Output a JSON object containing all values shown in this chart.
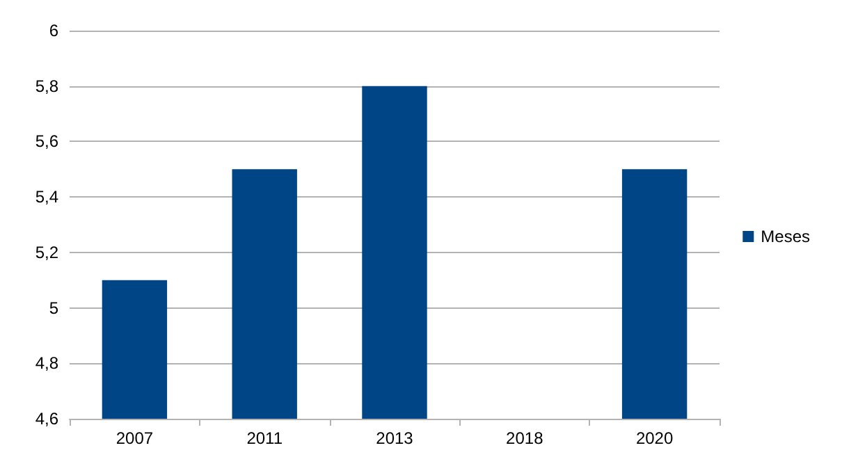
{
  "chart_data": {
    "type": "bar",
    "categories": [
      "2007",
      "2011",
      "2013",
      "2018",
      "2020"
    ],
    "series": [
      {
        "name": "Meses",
        "color": "#004586",
        "values": [
          5.1,
          5.5,
          5.8,
          null,
          5.5
        ]
      }
    ],
    "ylim": [
      4.6,
      6
    ],
    "yticks": [
      {
        "value": 4.6,
        "label": "4,6"
      },
      {
        "value": 4.8,
        "label": "4,8"
      },
      {
        "value": 5,
        "label": "5"
      },
      {
        "value": 5.2,
        "label": "5,2"
      },
      {
        "value": 5.4,
        "label": "5,4"
      },
      {
        "value": 5.6,
        "label": "5,6"
      },
      {
        "value": 5.8,
        "label": "5,8"
      },
      {
        "value": 6,
        "label": "6"
      }
    ],
    "grid": "y",
    "legend": "right"
  }
}
